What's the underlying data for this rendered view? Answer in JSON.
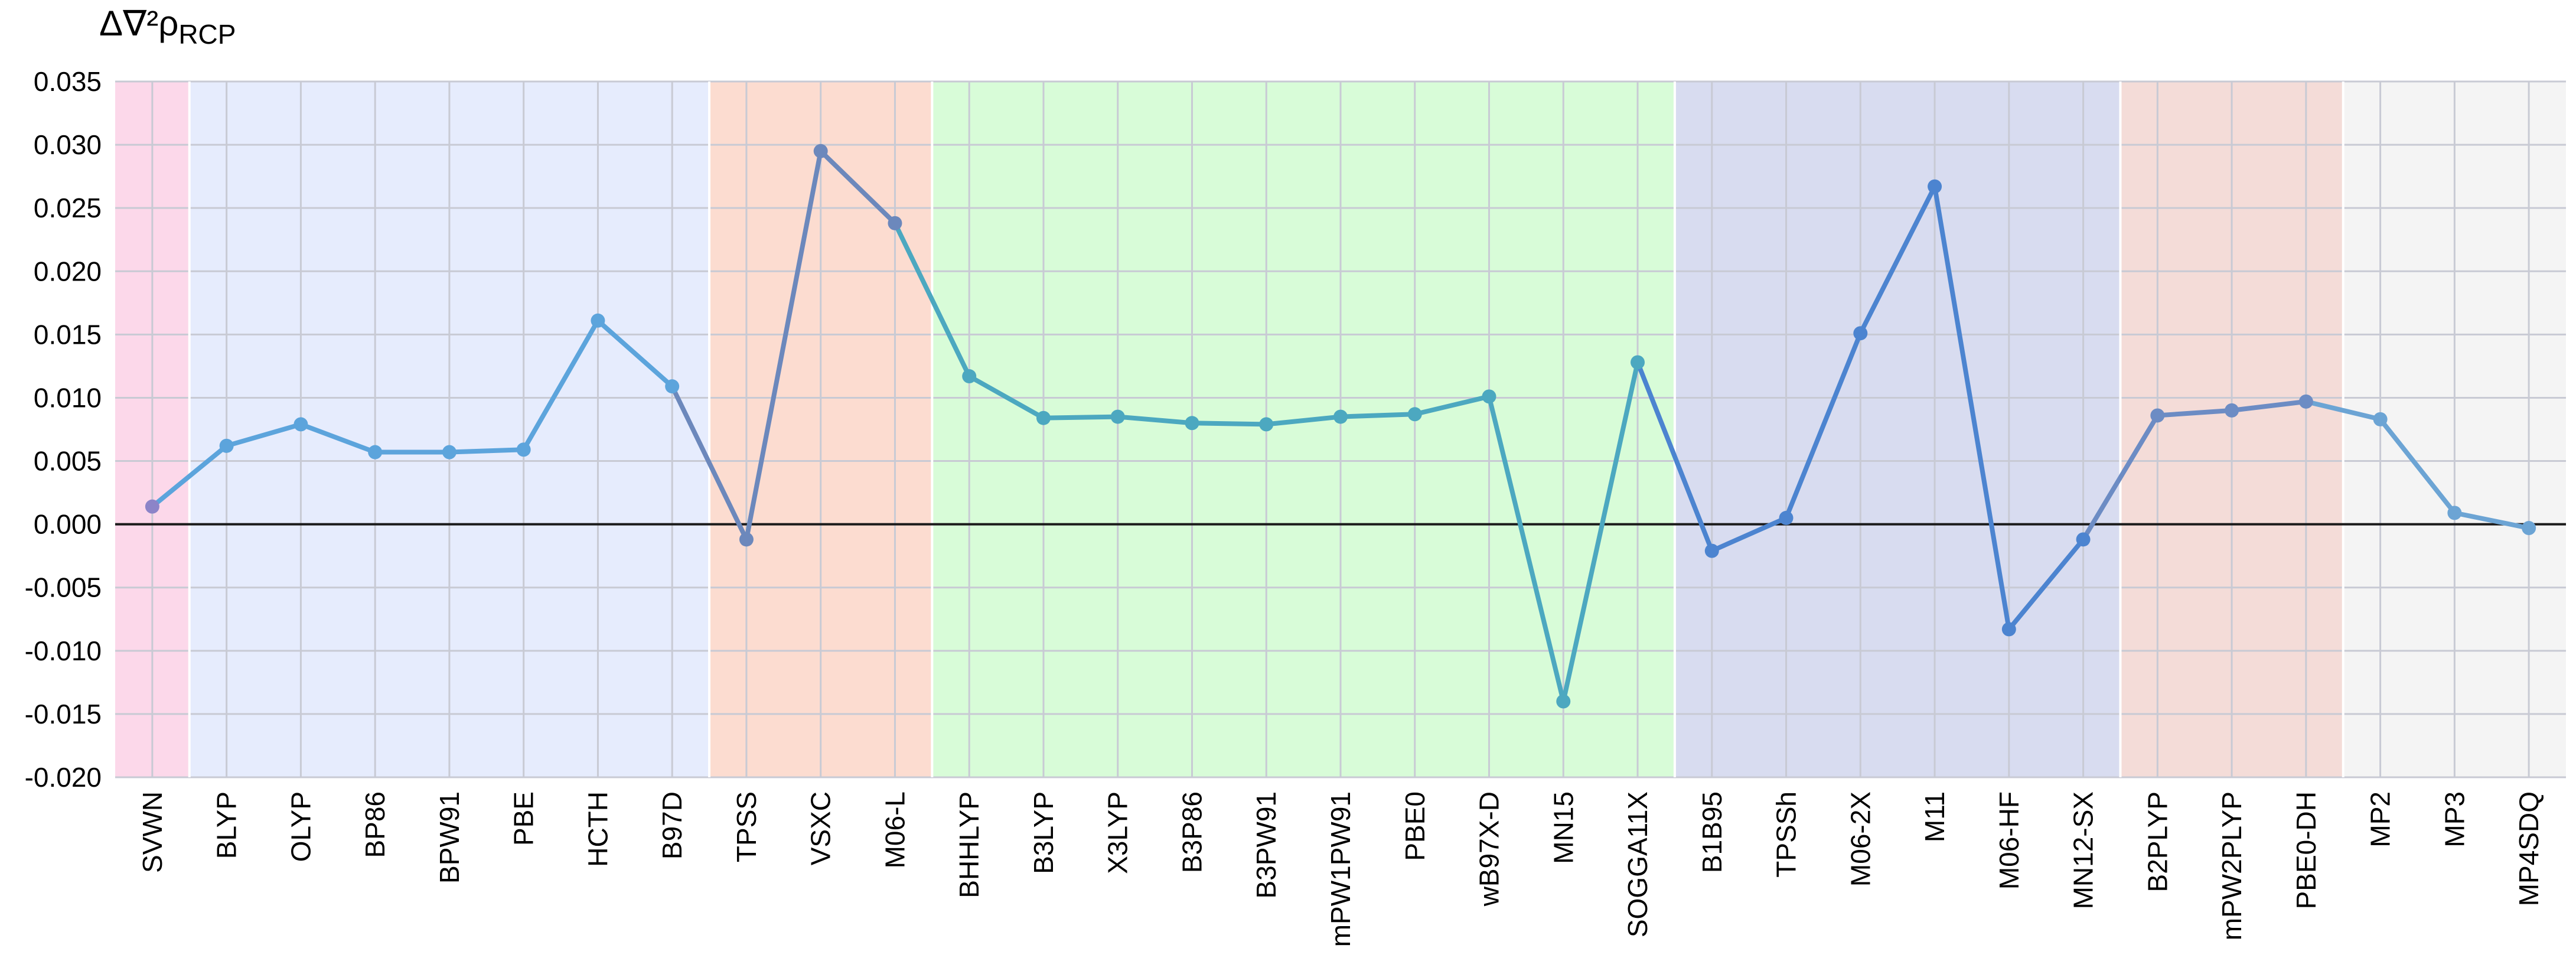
{
  "chart_data": {
    "type": "line",
    "title": "",
    "ylabel": {
      "main": "Δ∇²ρ",
      "sub": "RCP"
    },
    "xlabel": "",
    "ylim": [
      -0.02,
      0.035
    ],
    "yticks": [
      "0.035",
      "0.030",
      "0.025",
      "0.020",
      "0.015",
      "0.010",
      "0.005",
      "0.000",
      "-0.005",
      "-0.010",
      "-0.015",
      "-0.020"
    ],
    "yticks_values": [
      0.035,
      0.03,
      0.025,
      0.02,
      0.015,
      0.01,
      0.005,
      0.0,
      -0.005,
      -0.01,
      -0.015,
      -0.02
    ],
    "grid": true,
    "categories": [
      "SVWN",
      "BLYP",
      "OLYP",
      "BP86",
      "BPW91",
      "PBE",
      "HCTH",
      "B97D",
      "TPSS",
      "VSXC",
      "M06-L",
      "BHHLYP",
      "B3LYP",
      "X3LYP",
      "B3P86",
      "B3PW91",
      "mPW1PW91",
      "PBE0",
      "wB97X-D",
      "MN15",
      "SOGGA11X",
      "B1B95",
      "TPSSh",
      "M06-2X",
      "M11",
      "M06-HF",
      "MN12-SX",
      "B2PLYP",
      "mPW2PLYP",
      "PBE0-DH",
      "MP2",
      "MP3",
      "MP4SDQ"
    ],
    "values": [
      0.0014,
      0.0062,
      0.0079,
      0.0057,
      0.0057,
      0.0059,
      0.0161,
      0.0109,
      -0.0012,
      0.0295,
      0.0238,
      0.0117,
      0.0084,
      0.0085,
      0.008,
      0.0079,
      0.0085,
      0.0087,
      0.0101,
      -0.014,
      0.0128,
      -0.0021,
      0.0005,
      0.0151,
      0.0267,
      -0.0083,
      -0.0012,
      0.0086,
      0.009,
      0.0097,
      0.0083,
      0.0009,
      -0.0003
    ],
    "groups": [
      {
        "start": 0,
        "end": 0,
        "bg": "#fcd8ea",
        "line": "#8c84c8"
      },
      {
        "start": 1,
        "end": 7,
        "bg": "#e6ecfd",
        "line": "#5ca4dc"
      },
      {
        "start": 8,
        "end": 10,
        "bg": "#fcdcd0",
        "line": "#6c88bc"
      },
      {
        "start": 11,
        "end": 20,
        "bg": "#d8fcd8",
        "line": "#4ca8c0"
      },
      {
        "start": 21,
        "end": 26,
        "bg": "#d8dcf0",
        "line": "#4c84d0"
      },
      {
        "start": 27,
        "end": 29,
        "bg": "#f4dcd8",
        "line": "#6c8cc4"
      },
      {
        "start": 30,
        "end": 32,
        "bg": "#f4f4f4",
        "line": "#6ca4d4"
      }
    ],
    "zero_line": 0
  }
}
